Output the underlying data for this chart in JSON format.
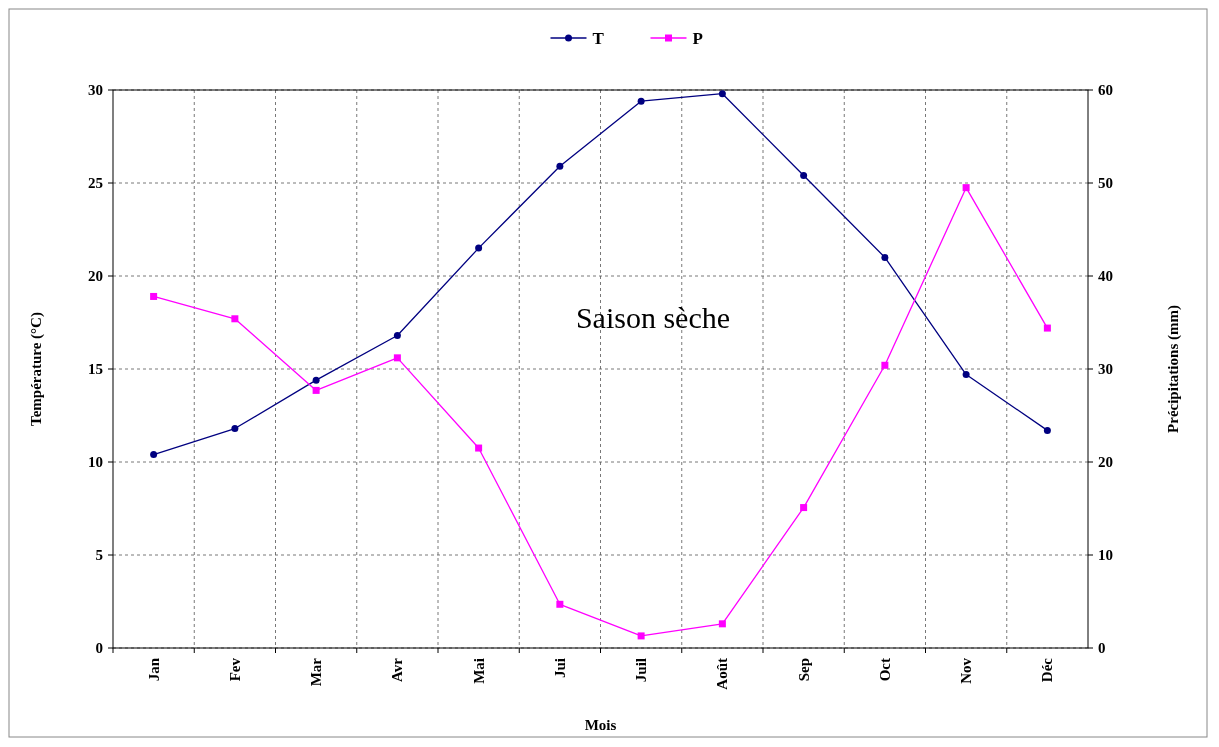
{
  "chart_data": {
    "type": "line",
    "xlabel": "Mois",
    "ylabel": "Température (°C)",
    "y2label": "Précipitations (mm)",
    "categories": [
      "Jan",
      "Fev",
      "Mar",
      "Avr",
      "Mai",
      "Jui",
      "Juil",
      "Août",
      "Sep",
      "Oct",
      "Nov",
      "Déc"
    ],
    "series": [
      {
        "name": "T",
        "color": "#000080",
        "marker": "circle",
        "values": [
          10.4,
          11.8,
          14.4,
          16.8,
          21.5,
          25.9,
          29.4,
          29.8,
          25.4,
          21.0,
          14.7,
          11.7
        ]
      },
      {
        "name": "P",
        "color": "#ff00ff",
        "marker": "square",
        "axis": "y2",
        "values": [
          37.8,
          35.4,
          27.7,
          31.2,
          21.5,
          4.7,
          1.3,
          2.6,
          15.1,
          30.4,
          49.5,
          34.4
        ]
      }
    ],
    "ylim": [
      0,
      30
    ],
    "yticks": [
      0,
      5,
      10,
      15,
      20,
      25,
      30
    ],
    "y2lim": [
      0,
      60
    ],
    "y2ticks": [
      0,
      10,
      20,
      30,
      40,
      50,
      60
    ],
    "grid": true,
    "legend": "top",
    "annotations": [
      "Saison sèche"
    ]
  }
}
